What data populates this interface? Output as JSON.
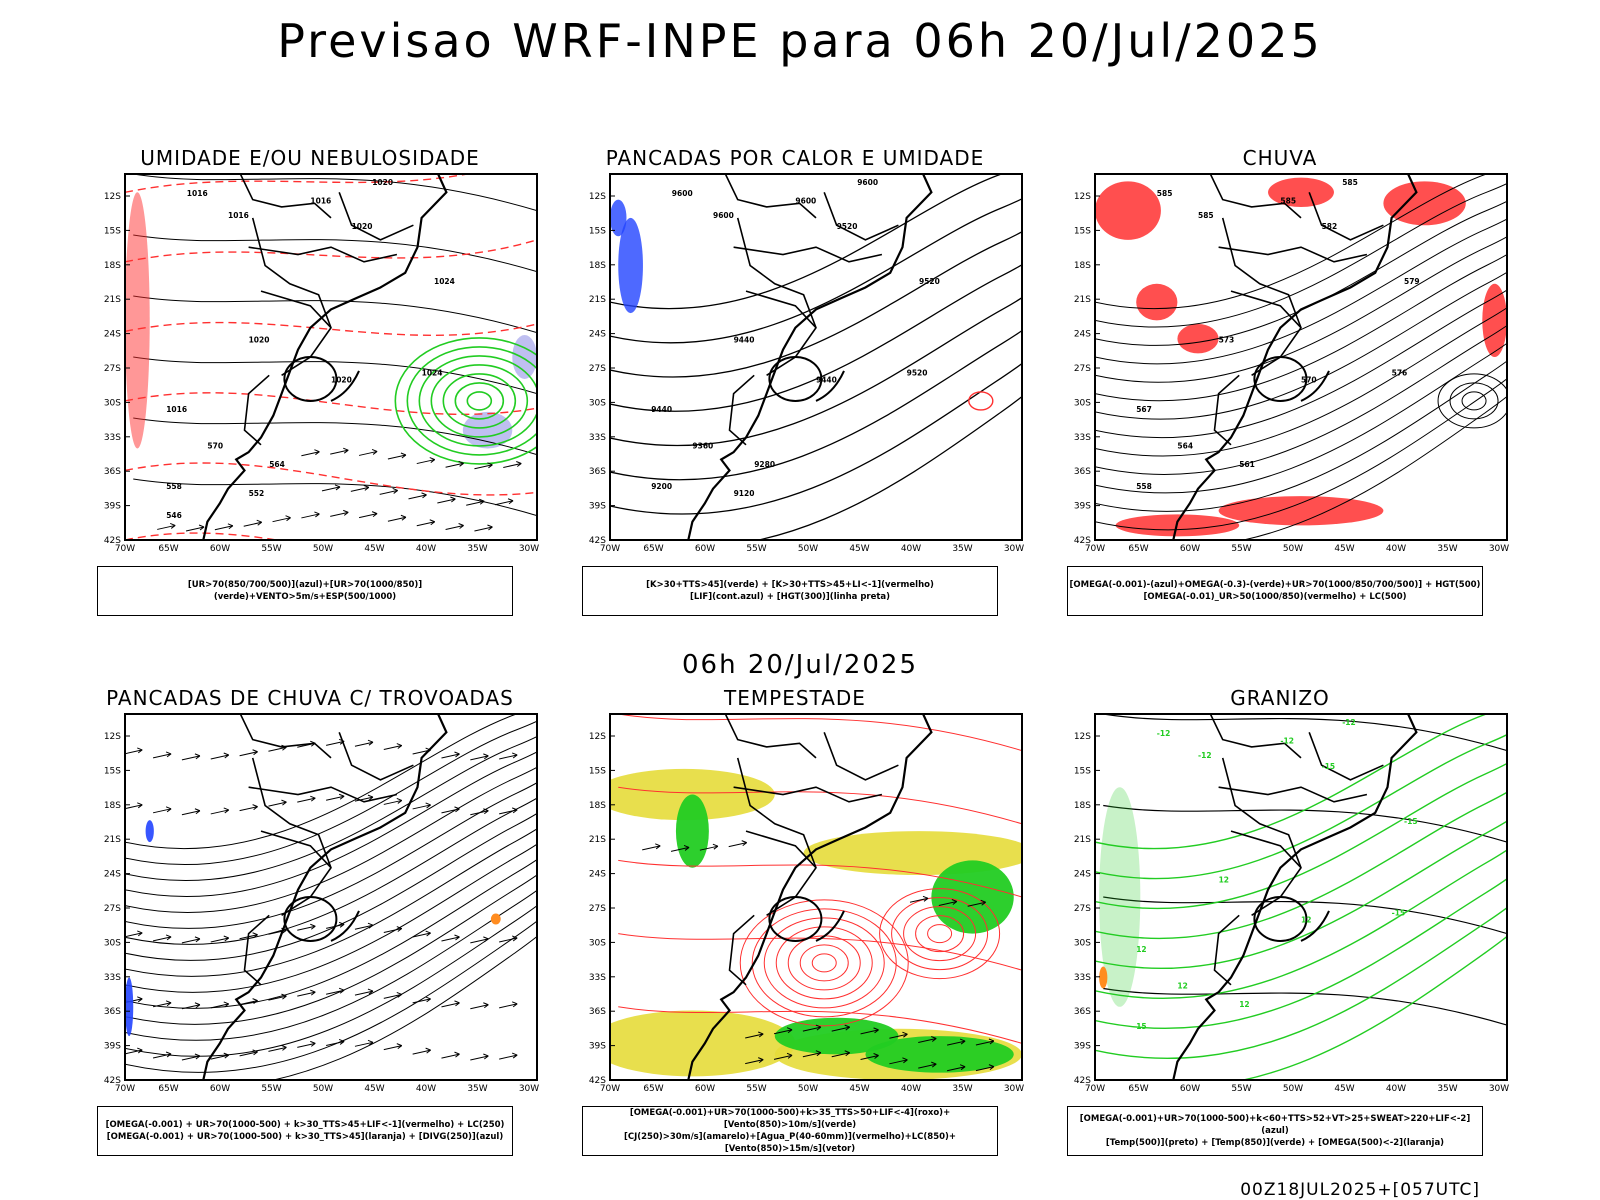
{
  "title": "Previsao WRF-INPE  para 06h 20/Jul/2025",
  "subtitle": "06h 20/Jul/2025",
  "footer": "00Z18JUL2025+[057UTC]",
  "axes": {
    "lat_labels": [
      "12S",
      "15S",
      "18S",
      "21S",
      "24S",
      "27S",
      "30S",
      "33S",
      "36S",
      "39S",
      "42S"
    ],
    "lon_labels": [
      "70W",
      "65W",
      "60W",
      "55W",
      "50W",
      "45W",
      "40W",
      "35W",
      "30W"
    ]
  },
  "colors": {
    "black": "#000000",
    "red": "#ff3030",
    "green": "#22cc22",
    "blue": "#2244ff",
    "yellow": "#e6dc3a",
    "lavender": "#b8b8f0",
    "orange": "#ff8c20"
  },
  "panels": [
    {
      "title": "UMIDADE E/OU NEBULOSIDADE",
      "legend": [
        "[UR>70(850/700/500)](azul)+[UR>70(1000/850)](verde)+VENTO>5m/s+ESP(500/1000)"
      ],
      "labels": [
        "1016",
        "1016",
        "1016",
        "1020",
        "1020",
        "1024",
        "1024",
        "1020",
        "1020",
        "1016",
        "570",
        "564",
        "558",
        "552",
        "546"
      ]
    },
    {
      "title": "PANCADAS POR CALOR E UMIDADE",
      "legend": [
        "[K>30+TTS>45](verde) + [K>30+TTS>45+LI<-1](vermelho)",
        "[LIF](cont.azul) + [HGT(300)](linha preta)"
      ],
      "labels": [
        "9600",
        "9600",
        "9600",
        "9600",
        "9520",
        "9520",
        "9520",
        "9440",
        "9440",
        "9440",
        "9360",
        "9280",
        "9200",
        "9120"
      ]
    },
    {
      "title": "CHUVA",
      "legend": [
        "[OMEGA(-0.001)-(azul)+OMEGA(-0.3)-(verde)+UR>70(1000/850/700/500)] + HGT(500)",
        "[OMEGA(-0.01)_UR>50(1000/850)(vermelho) + LC(500)"
      ],
      "labels": [
        "585",
        "585",
        "585",
        "585",
        "582",
        "579",
        "576",
        "573",
        "570",
        "567",
        "564",
        "561",
        "558"
      ]
    },
    {
      "title": "PANCADAS DE CHUVA C/ TROVOADAS",
      "legend": [
        "[OMEGA(-0.001) + UR>70(1000-500) + k>30_TTS>45+LIF<-1](vermelho) + LC(250)",
        "[OMEGA(-0.001) + UR>70(1000-500) + k>30_TTS>45](laranja) + [DIVG(250)](azul)"
      ],
      "labels": []
    },
    {
      "title": "TEMPESTADE",
      "legend": [
        "[OMEGA(-0.001)+UR>70(1000-500)+k>35_TTS>50+LIF<-4](roxo)+[Vento(850)>10m/s](verde)",
        "[CJ(250)>30m/s](amarelo)+[Agua_P(40-60mm)](vermelho)+LC(850)+[Vento(850)>15m/s](vetor)"
      ],
      "labels": []
    },
    {
      "title": "GRANIZO",
      "legend": [
        "[OMEGA(-0.001)+UR>70(1000-500)+k<60+TTS>52+VT>25+SWEAT>220+LIF<-2](azul)",
        "[Temp(500)](preto) + [Temp(850)](verde) + [OMEGA(500)<-2](laranja)"
      ],
      "labels": [
        "-12",
        "-12",
        "-12",
        "-12",
        "-15",
        "-15",
        "-15",
        "12",
        "12",
        "12",
        "12",
        "12",
        "15"
      ]
    }
  ]
}
